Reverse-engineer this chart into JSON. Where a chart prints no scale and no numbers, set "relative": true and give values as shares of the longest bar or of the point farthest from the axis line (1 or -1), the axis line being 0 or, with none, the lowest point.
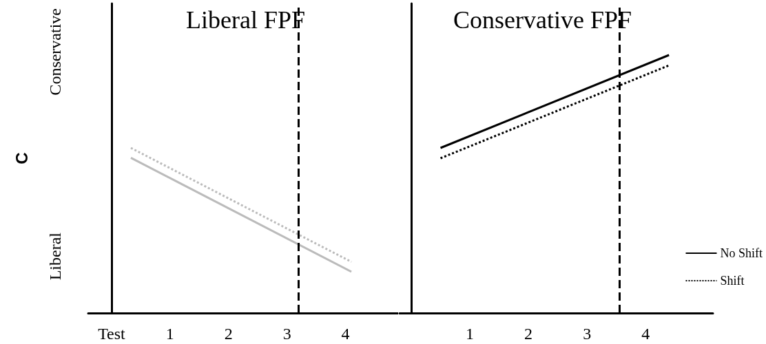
{
  "chart_data": [
    {
      "type": "line",
      "title": "Liberal FPF",
      "ylabel": "C",
      "annotations": [
        "Conservative",
        "Liberal"
      ],
      "relative": true,
      "xlim": [
        -0.4,
        4.9
      ],
      "xticks": [
        {
          "value": 0,
          "label": "Test"
        },
        1,
        2,
        3,
        4
      ],
      "marker": "none",
      "legend": false,
      "series": [
        {
          "color": "#bbbbbb",
          "line_style": "solid",
          "x": [
            0.33,
            4.1
          ],
          "values": [
            0.94,
            0.25
          ]
        },
        {
          "color": "#bbbbbb",
          "line_style": "dotted",
          "x": [
            0.33,
            4.1
          ],
          "values": [
            1,
            0.31
          ]
        }
      ],
      "ref_lines": [
        {
          "axis": "x",
          "value": 3.2,
          "color": "#000000",
          "line_style": "dashed"
        }
      ]
    },
    {
      "type": "line",
      "title": "Conservative FPF",
      "relative": true,
      "xlim": [
        -0.2,
        5.15
      ],
      "xticks": [
        1,
        2,
        3,
        4
      ],
      "marker": "none",
      "legend": "bottom right",
      "series": [
        {
          "name": "No Shift",
          "color": "#000000",
          "line_style": "solid",
          "x": [
            0.5,
            4.4
          ],
          "values": [
            0.64,
            1
          ]
        },
        {
          "name": "Shift",
          "color": "#000000",
          "line_style": "dotted",
          "x": [
            0.5,
            4.4
          ],
          "values": [
            0.6,
            0.96
          ]
        }
      ],
      "ref_lines": [
        {
          "axis": "x",
          "value": 3.55,
          "color": "#000000",
          "line_style": "dashed"
        }
      ]
    }
  ]
}
